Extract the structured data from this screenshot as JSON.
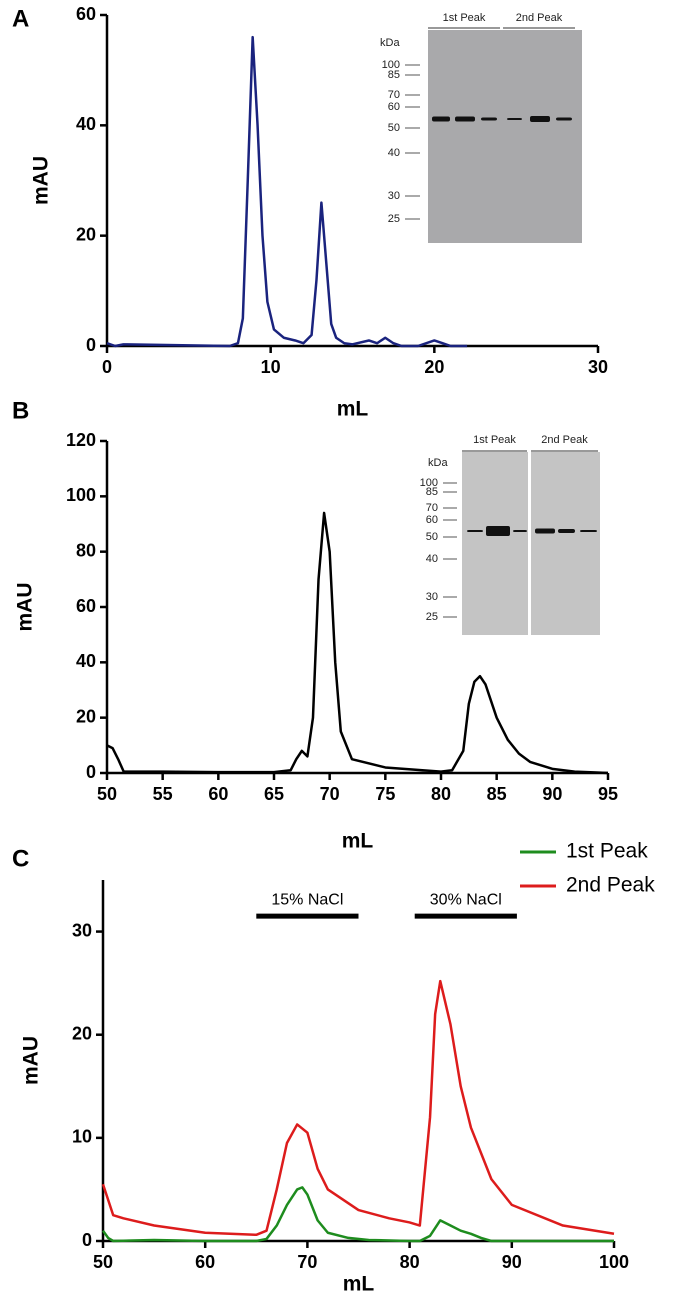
{
  "chart_data": [
    {
      "type": "line",
      "label": "A",
      "xlabel": "mL",
      "ylabel": "mAU",
      "color": "#1a237e",
      "xlim": [
        0,
        30
      ],
      "xticks": [
        0,
        10,
        20,
        30
      ],
      "ylim": [
        0,
        60
      ],
      "yticks": [
        0,
        20,
        40,
        60
      ],
      "x": [
        0,
        0.5,
        1,
        7.5,
        8,
        8.3,
        8.6,
        8.9,
        9.2,
        9.5,
        9.8,
        10.2,
        10.8,
        11.5,
        12,
        12.5,
        12.8,
        13.1,
        13.4,
        13.7,
        14,
        14.5,
        15,
        16,
        16.5,
        17,
        17.5,
        18,
        19,
        20,
        20.5,
        21,
        22
      ],
      "values": [
        0.5,
        0,
        0.3,
        0,
        0.5,
        5,
        30,
        56,
        40,
        20,
        8,
        3,
        1.5,
        1,
        0.5,
        2,
        12,
        26,
        15,
        4,
        1.5,
        0.5,
        0.3,
        1,
        0.5,
        1.5,
        0.5,
        0,
        0,
        1,
        0.5,
        0,
        0
      ],
      "inset": {
        "unit": "kDa",
        "markers": [
          100,
          85,
          70,
          60,
          50,
          40,
          30,
          25
        ],
        "groups": [
          "1st Peak",
          "2nd Peak"
        ]
      }
    },
    {
      "type": "line",
      "label": "B",
      "xlabel": "mL",
      "ylabel": "mAU",
      "color": "#000000",
      "xlim": [
        50,
        95
      ],
      "xticks": [
        50,
        55,
        60,
        65,
        70,
        75,
        80,
        85,
        90,
        95
      ],
      "ylim": [
        0,
        120
      ],
      "yticks": [
        0,
        20,
        40,
        60,
        80,
        100,
        120
      ],
      "x": [
        50,
        50.5,
        51,
        51.5,
        55,
        60,
        65,
        66.5,
        67,
        67.5,
        68,
        68.5,
        69,
        69.5,
        70,
        70.5,
        71,
        72,
        75,
        80,
        81,
        82,
        82.5,
        83,
        83.5,
        84,
        85,
        86,
        87,
        88,
        90,
        92,
        94,
        95
      ],
      "values": [
        10,
        9,
        5,
        0.5,
        0.5,
        0.3,
        0.3,
        1,
        5,
        8,
        6,
        20,
        70,
        94,
        80,
        40,
        15,
        5,
        2,
        0.5,
        1,
        8,
        25,
        33,
        35,
        32,
        20,
        12,
        7,
        4,
        1.5,
        0.5,
        0.2,
        0
      ],
      "inset": {
        "unit": "kDa",
        "markers": [
          100,
          85,
          70,
          60,
          50,
          40,
          30,
          25
        ],
        "groups": [
          "1st Peak",
          "2nd Peak"
        ]
      }
    },
    {
      "type": "line",
      "label": "C",
      "xlabel": "mL",
      "ylabel": "mAU",
      "legend": "upper right",
      "xlim": [
        50,
        100
      ],
      "xticks": [
        50,
        60,
        70,
        80,
        90,
        100
      ],
      "ylim": [
        0,
        35
      ],
      "yticks": [
        0,
        10,
        20,
        30
      ],
      "annotations": [
        "15% NaCl",
        "30% NaCl"
      ],
      "series": [
        {
          "name": "1st Peak",
          "color": "#1e8c1e",
          "x": [
            50,
            50.5,
            51,
            55,
            60,
            65,
            66,
            67,
            68,
            69,
            69.5,
            70,
            71,
            72,
            74,
            76,
            80,
            81,
            82,
            83,
            84,
            85,
            86,
            87,
            88,
            100
          ],
          "values": [
            1,
            0.3,
            0,
            0.1,
            0,
            0,
            0.2,
            1.5,
            3.5,
            5,
            5.2,
            4.5,
            2,
            0.8,
            0.3,
            0.1,
            0,
            0,
            0.5,
            2,
            1.5,
            1,
            0.7,
            0.3,
            0,
            0
          ]
        },
        {
          "name": "2nd Peak",
          "color": "#dd1c1c",
          "x": [
            50,
            50.5,
            51,
            52,
            55,
            60,
            65,
            66,
            67,
            68,
            69,
            70,
            71,
            72,
            75,
            78,
            80,
            81,
            82,
            82.5,
            83,
            84,
            85,
            86,
            88,
            90,
            95,
            100
          ],
          "values": [
            5.5,
            4,
            2.5,
            2.2,
            1.5,
            0.8,
            0.6,
            1,
            5,
            9.5,
            11.3,
            10.5,
            7,
            5,
            3,
            2.2,
            1.8,
            1.5,
            12,
            22,
            25.2,
            21,
            15,
            11,
            6,
            3.5,
            1.5,
            0.7
          ]
        }
      ]
    }
  ]
}
